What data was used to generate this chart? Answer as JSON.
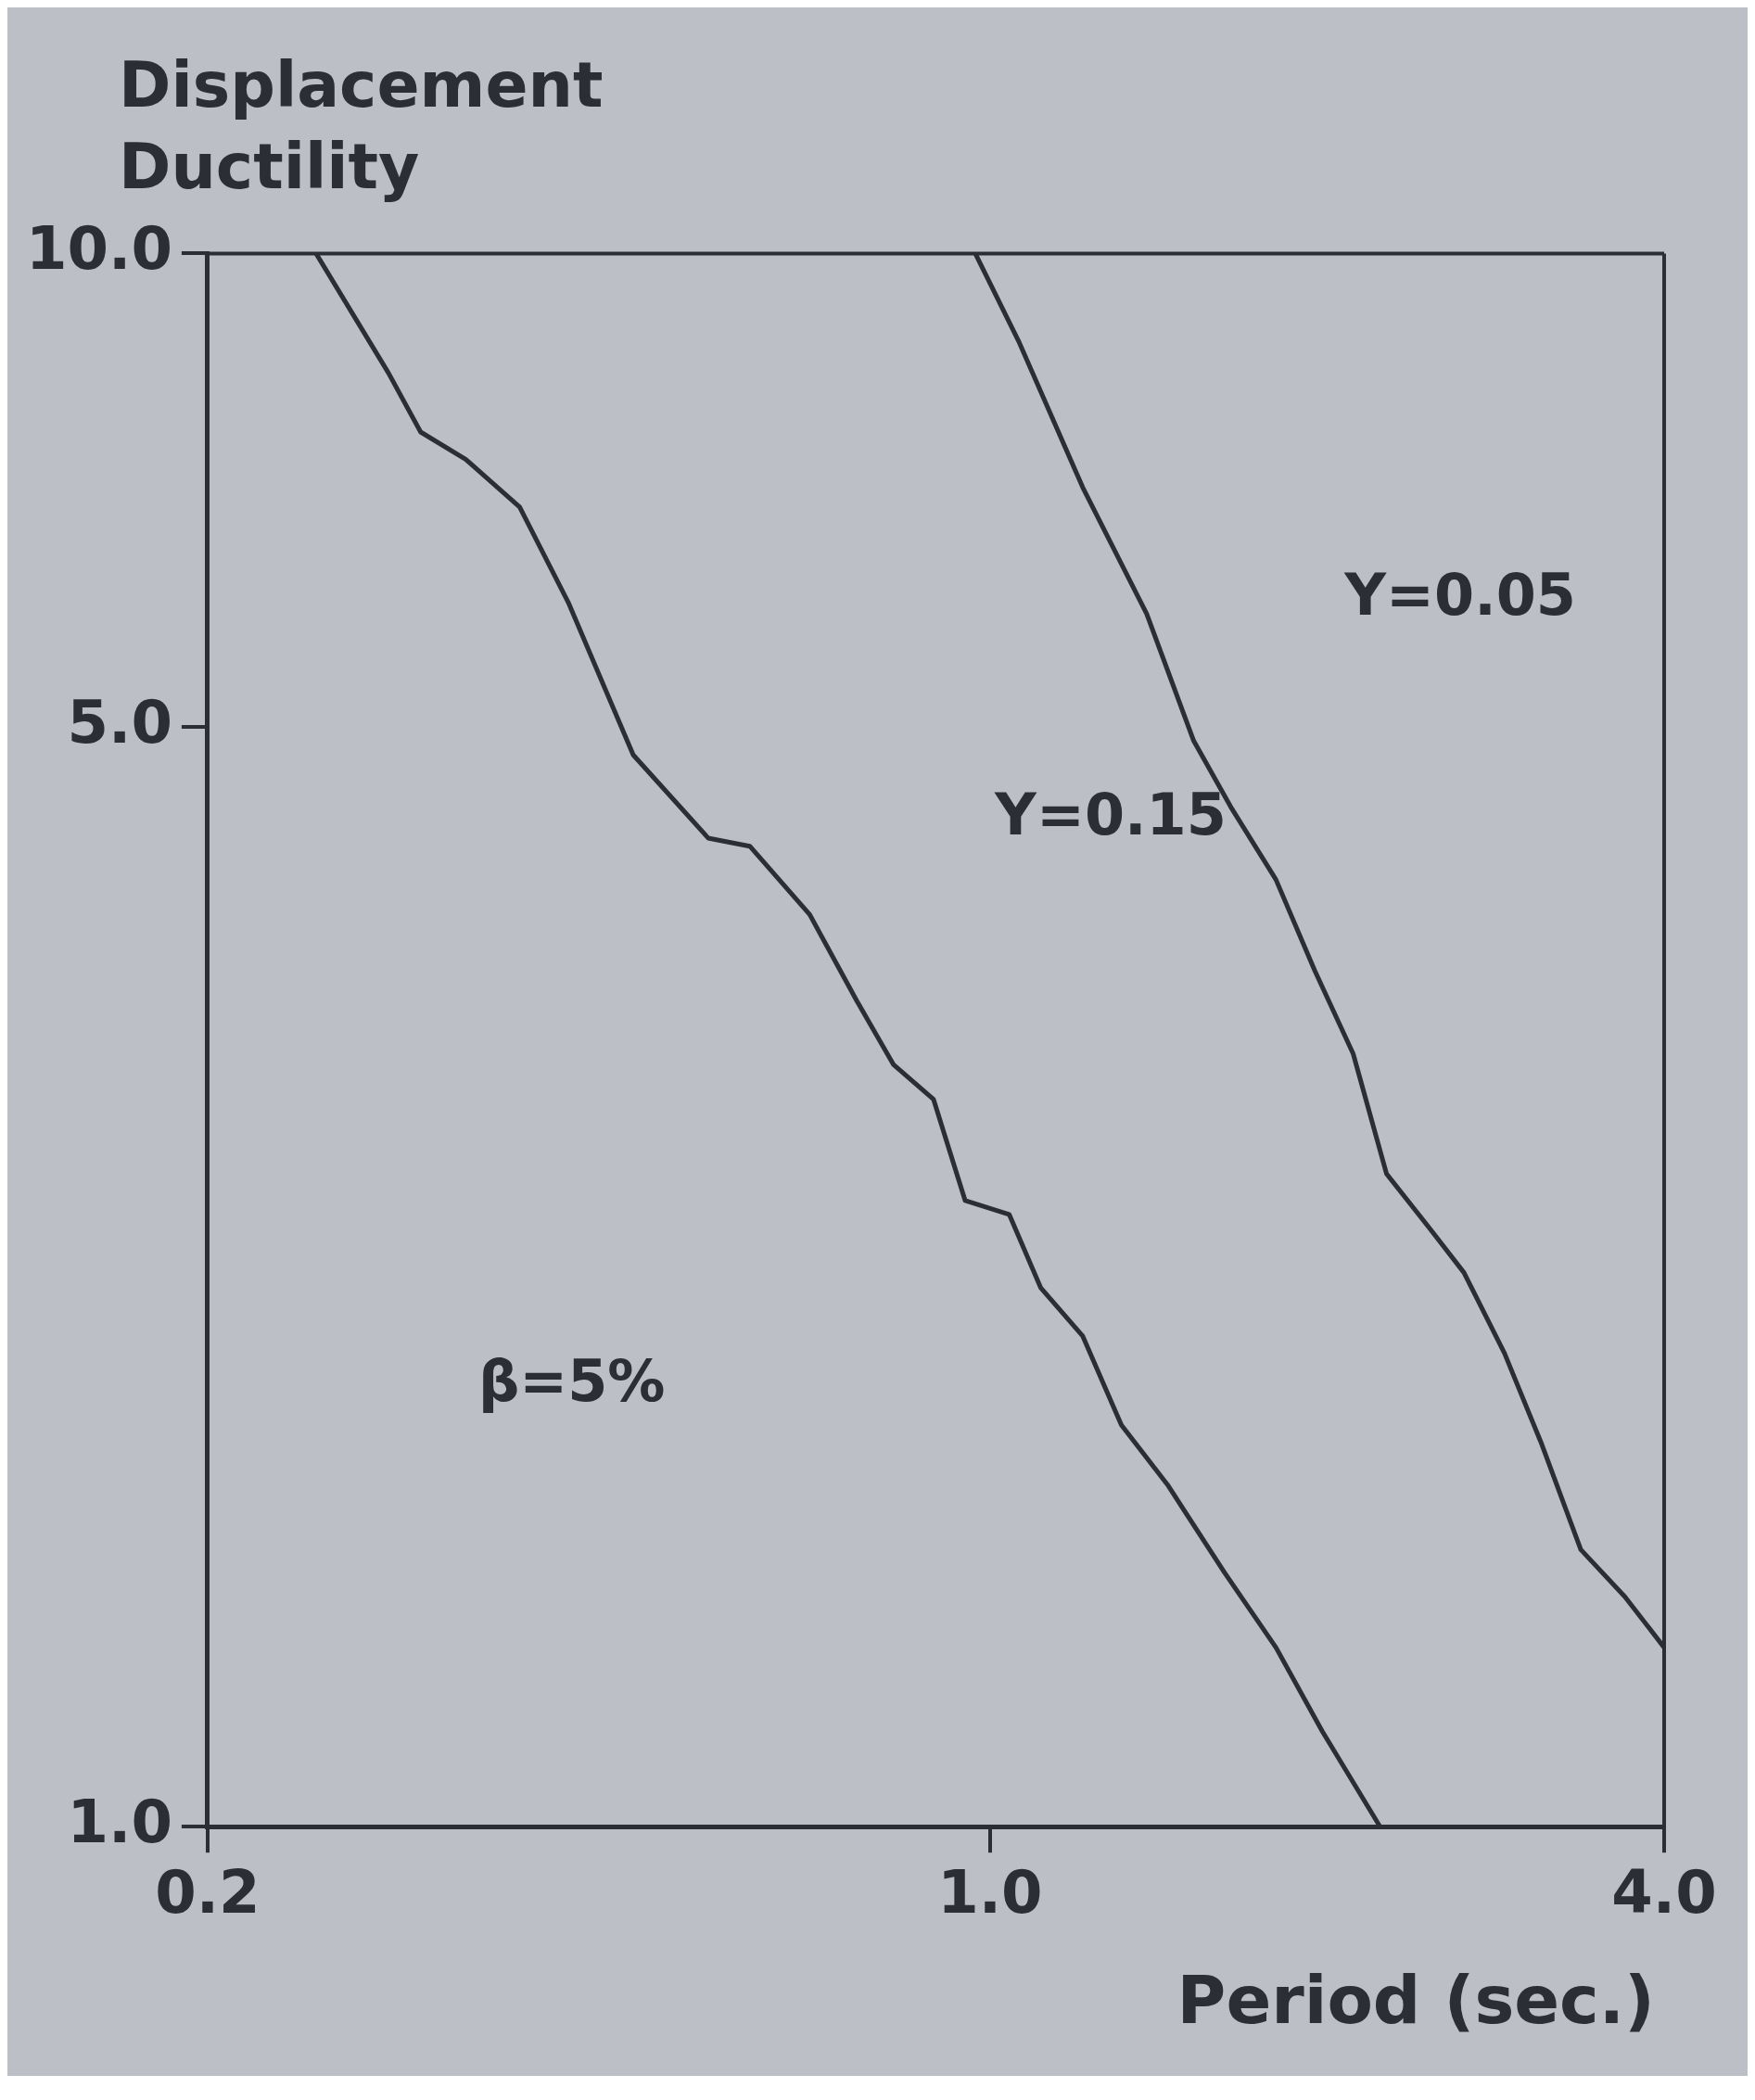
{
  "chart_data": {
    "type": "line",
    "ylabel": "Displacement Ductility",
    "xlabel": "Period (sec.)",
    "log": "xy",
    "xlim": [
      0.2,
      4.0
    ],
    "ylim": [
      1.0,
      10.0
    ],
    "xticks": [
      {
        "value": 0.2,
        "label": "0.2"
      },
      {
        "value": 1,
        "label": "1.0"
      },
      {
        "value": 4,
        "label": "4.0"
      }
    ],
    "yticks": [
      {
        "value": 1,
        "label": "1.0"
      },
      {
        "value": 5,
        "label": "5.0"
      },
      {
        "value": 10,
        "label": "10.0"
      }
    ],
    "series": [
      {
        "color": "#2b2e35",
        "x": [
          0.25,
          0.29,
          0.31,
          0.34,
          0.38,
          0.42,
          0.48,
          0.56,
          0.61,
          0.69,
          0.76,
          0.82,
          0.89,
          0.95,
          1.04,
          1.11,
          1.21,
          1.31,
          1.44,
          1.62,
          1.8,
          1.98,
          2.23
        ],
        "values": [
          10,
          8.4,
          7.7,
          7.4,
          6.9,
          6.0,
          4.8,
          4.25,
          4.2,
          3.8,
          3.35,
          3.05,
          2.9,
          2.5,
          2.45,
          2.2,
          2.05,
          1.8,
          1.65,
          1.45,
          1.3,
          1.15,
          1.0
        ]
      },
      {
        "color": "#2b2e35",
        "x": [
          0.97,
          1.06,
          1.21,
          1.38,
          1.52,
          1.64,
          1.8,
          1.95,
          2.11,
          2.26,
          2.47,
          2.65,
          2.88,
          3.11,
          3.37,
          3.69,
          4.0
        ],
        "values": [
          10,
          8.8,
          7.1,
          5.9,
          4.9,
          4.45,
          4.0,
          3.5,
          3.1,
          2.6,
          2.4,
          2.25,
          2.0,
          1.75,
          1.5,
          1.4,
          1.3
        ]
      }
    ],
    "marker": "none",
    "line_style": "solid",
    "legend": false,
    "annotations": [
      "Y=0.15",
      "Y=0.05",
      "β=5%"
    ]
  }
}
